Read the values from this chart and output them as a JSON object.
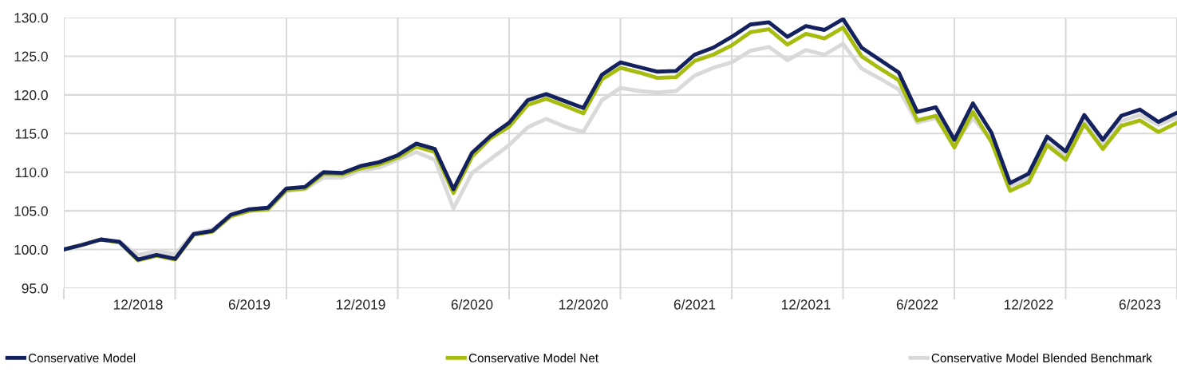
{
  "chart_data": {
    "type": "line",
    "categories": [
      null,
      null,
      null,
      null,
      "12/2018",
      null,
      null,
      null,
      null,
      null,
      "6/2019",
      null,
      null,
      null,
      null,
      null,
      "12/2019",
      null,
      null,
      null,
      null,
      null,
      "6/2020",
      null,
      null,
      null,
      null,
      null,
      "12/2020",
      null,
      null,
      null,
      null,
      null,
      "6/2021",
      null,
      null,
      null,
      null,
      null,
      "12/2021",
      null,
      null,
      null,
      null,
      null,
      "6/2022",
      null,
      null,
      null,
      null,
      null,
      "12/2022",
      null,
      null,
      null,
      null,
      null,
      "6/2023",
      null,
      null
    ],
    "series": [
      {
        "name": "Conservative Model Blended Benchmark",
        "color": "#d9d9d9",
        "values": [
          100.0,
          100.7,
          101.3,
          101.0,
          99.3,
          99.8,
          99.4,
          102.1,
          102.6,
          104.4,
          105.1,
          105.2,
          107.6,
          107.8,
          109.3,
          109.3,
          110.2,
          110.6,
          111.6,
          112.6,
          111.6,
          105.3,
          109.9,
          111.7,
          113.5,
          115.8,
          116.9,
          115.9,
          115.2,
          119.3,
          120.9,
          120.5,
          120.3,
          120.5,
          122.5,
          123.5,
          124.2,
          125.7,
          126.2,
          124.5,
          125.8,
          125.2,
          126.6,
          123.4,
          122.1,
          120.7,
          116.4,
          117.0,
          113.5,
          117.0,
          114.1,
          108.2,
          109.3,
          113.8,
          112.1,
          116.8,
          113.7,
          116.6,
          117.4,
          116.1,
          117.1
        ]
      },
      {
        "name": "Conservative Model Net",
        "color": "#a6bd0f",
        "values": [
          100.0,
          100.6,
          101.3,
          100.9,
          98.6,
          99.2,
          98.7,
          101.9,
          102.3,
          104.3,
          105.0,
          105.2,
          107.7,
          107.9,
          109.8,
          109.7,
          110.5,
          111.0,
          111.9,
          113.3,
          112.6,
          107.3,
          112.0,
          114.4,
          115.9,
          118.7,
          119.5,
          118.6,
          117.6,
          122.0,
          123.5,
          122.9,
          122.2,
          122.3,
          124.4,
          125.2,
          126.4,
          128.1,
          128.5,
          126.5,
          127.9,
          127.3,
          128.7,
          125.0,
          123.4,
          121.9,
          116.7,
          117.3,
          113.2,
          117.8,
          113.9,
          107.6,
          108.7,
          113.5,
          111.6,
          116.2,
          113.0,
          116.0,
          116.7,
          115.2,
          116.4
        ]
      },
      {
        "name": "Conservative Model",
        "color": "#14215f",
        "values": [
          100.0,
          100.6,
          101.3,
          101.0,
          98.7,
          99.3,
          98.8,
          102.0,
          102.4,
          104.5,
          105.2,
          105.4,
          107.9,
          108.1,
          110.0,
          109.9,
          110.8,
          111.3,
          112.2,
          113.7,
          113.0,
          107.8,
          112.5,
          114.7,
          116.4,
          119.3,
          120.1,
          119.2,
          118.3,
          122.6,
          124.2,
          123.6,
          123.0,
          123.1,
          125.2,
          126.1,
          127.5,
          129.1,
          129.4,
          127.5,
          128.9,
          128.4,
          129.8,
          126.1,
          124.5,
          122.9,
          117.8,
          118.4,
          114.2,
          118.9,
          115.1,
          108.6,
          109.8,
          114.6,
          112.7,
          117.4,
          114.2,
          117.3,
          118.1,
          116.5,
          117.7
        ]
      }
    ],
    "ylim": [
      95,
      130
    ],
    "yticks": [
      {
        "value": 95,
        "label": "95.0"
      },
      {
        "value": 100,
        "label": "100.0"
      },
      {
        "value": 105,
        "label": "105.0"
      },
      {
        "value": 110,
        "label": "110.0"
      },
      {
        "value": 115,
        "label": "115.0"
      },
      {
        "value": 120,
        "label": "120.0"
      },
      {
        "value": 125,
        "label": "125.0"
      },
      {
        "value": 130,
        "label": "130.0"
      }
    ],
    "grid": true,
    "legend": "bottom",
    "marker": "none",
    "line_style": "solid"
  }
}
